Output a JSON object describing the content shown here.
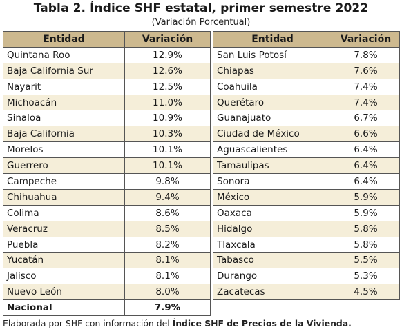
{
  "title": "Tabla 2. Índice SHF estatal, primer semestre 2022",
  "subtitle": "(Variación Porcentual)",
  "headers": {
    "entidad_left": "Entidad",
    "variacion_left": "Variación",
    "entidad_right": "Entidad",
    "variacion_right": "Variación"
  },
  "rows": [
    {
      "left_name": "Quintana Roo",
      "left_value": "12.9%",
      "right_name": "San Luis Potosí",
      "right_value": "7.8%"
    },
    {
      "left_name": "Baja California Sur",
      "left_value": "12.6%",
      "right_name": "Chiapas",
      "right_value": "7.6%"
    },
    {
      "left_name": "Nayarit",
      "left_value": "12.5%",
      "right_name": "Coahuila",
      "right_value": "7.4%"
    },
    {
      "left_name": "Michoacán",
      "left_value": "11.0%",
      "right_name": "Querétaro",
      "right_value": "7.4%"
    },
    {
      "left_name": "Sinaloa",
      "left_value": "10.9%",
      "right_name": "Guanajuato",
      "right_value": "6.7%"
    },
    {
      "left_name": "Baja California",
      "left_value": "10.3%",
      "right_name": "Ciudad de México",
      "right_value": "6.6%"
    },
    {
      "left_name": "Morelos",
      "left_value": "10.1%",
      "right_name": "Aguascalientes",
      "right_value": "6.4%"
    },
    {
      "left_name": "Guerrero",
      "left_value": "10.1%",
      "right_name": "Tamaulipas",
      "right_value": "6.4%"
    },
    {
      "left_name": "Campeche",
      "left_value": "9.8%",
      "right_name": "Sonora",
      "right_value": "6.4%"
    },
    {
      "left_name": "Chihuahua",
      "left_value": "9.4%",
      "right_name": "México",
      "right_value": "5.9%"
    },
    {
      "left_name": "Colima",
      "left_value": "8.6%",
      "right_name": "Oaxaca",
      "right_value": "5.9%"
    },
    {
      "left_name": "Veracruz",
      "left_value": "8.5%",
      "right_name": "Hidalgo",
      "right_value": "5.8%"
    },
    {
      "left_name": "Puebla",
      "left_value": "8.2%",
      "right_name": "Tlaxcala",
      "right_value": "5.8%"
    },
    {
      "left_name": "Yucatán",
      "left_value": "8.1%",
      "right_name": "Tabasco",
      "right_value": "5.5%"
    },
    {
      "left_name": "Jalisco",
      "left_value": "8.1%",
      "right_name": "Durango",
      "right_value": "5.3%"
    },
    {
      "left_name": "Nuevo León",
      "left_value": "8.0%",
      "right_name": "Zacatecas",
      "right_value": "4.5%"
    }
  ],
  "total": {
    "label": "Nacional",
    "value": "7.9%"
  },
  "note": {
    "prefix": "Elaborada por SHF con información del ",
    "emphasis": "Índice SHF de Precios de la Vivienda."
  },
  "colors": {
    "header_fill": "#cdb98f",
    "row_shade": "#f5eed9"
  }
}
